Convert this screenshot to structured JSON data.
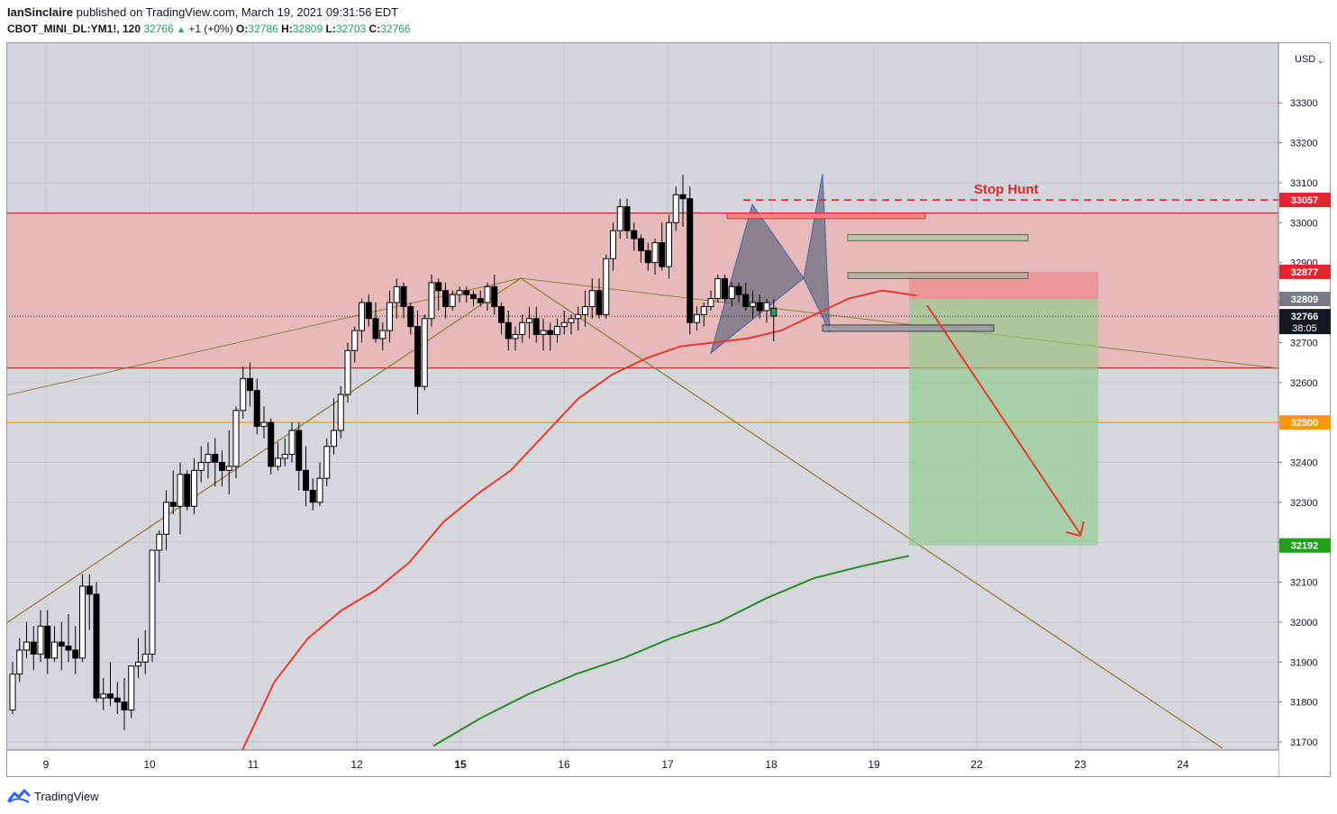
{
  "header": {
    "author": "IanSinclaire",
    "published_text": "published on TradingView.com, March 19, 2021 09:31:56 EDT",
    "symbol": "CBOT_MINI_DL:YM1!, 120",
    "last": "32766",
    "change_arrow": "▲",
    "change": "+1 (+0%)",
    "o_label": "O:",
    "o": "32786",
    "h_label": "H:",
    "h": "32809",
    "l_label": "L:",
    "l": "32703",
    "c_label": "C:",
    "c": "32766"
  },
  "footer": {
    "brand": "TradingView",
    "logo_icon": "tradingview-logo-icon"
  },
  "chart_data": {
    "type": "candlestick",
    "currency": "USD",
    "y_ticks": [
      31700,
      31800,
      31900,
      32000,
      32100,
      32200,
      32300,
      32400,
      32500,
      32600,
      32700,
      32800,
      32900,
      33000,
      33100,
      33200,
      33300
    ],
    "ylim": [
      31670,
      33420
    ],
    "x_ticks": [
      "9",
      "10",
      "11",
      "12",
      "15",
      "16",
      "17",
      "18",
      "19",
      "22",
      "23",
      "24"
    ],
    "x_ticks_bold": [
      "15"
    ],
    "price_labels": [
      {
        "text": "33057",
        "value": 33057,
        "color": "#e0252d"
      },
      {
        "text": "32877",
        "value": 32877,
        "color": "#e0252d"
      },
      {
        "text": "32809",
        "value": 32809,
        "color": "#787b86"
      },
      {
        "text": "32766",
        "value": 32766,
        "color": "#131722",
        "sub": "38:05"
      },
      {
        "text": "32500",
        "value": 32500,
        "color": "#ff9800"
      },
      {
        "text": "32192",
        "value": 32192,
        "color": "#1fa015"
      }
    ],
    "annotations": [
      {
        "text": "Stop Hunt",
        "color": "#e0252d"
      }
    ],
    "zones": [
      {
        "name": "supply-zone",
        "from": 32636,
        "to": 33024,
        "color": "#e9b5b5"
      }
    ],
    "levels": [
      {
        "name": "stop-hunt",
        "value": 33057,
        "color": "#e0252d",
        "style": "dashed"
      },
      {
        "name": "support",
        "value": 32500,
        "color": "#ff9800",
        "style": "solid"
      }
    ],
    "short_position": {
      "entry": 32809,
      "stop": 32877,
      "target": 32192
    },
    "ohlc": [
      [
        31780,
        31900,
        31770,
        31870
      ],
      [
        31870,
        31960,
        31850,
        31930
      ],
      [
        31930,
        32000,
        31910,
        31950
      ],
      [
        31950,
        31990,
        31880,
        31920
      ],
      [
        31920,
        32030,
        31900,
        31990
      ],
      [
        31990,
        32030,
        31870,
        31910
      ],
      [
        31910,
        31990,
        31900,
        31950
      ],
      [
        31950,
        32000,
        31880,
        31940
      ],
      [
        31940,
        32020,
        31900,
        31930
      ],
      [
        31930,
        31990,
        31870,
        31910
      ],
      [
        31910,
        32120,
        31900,
        32090
      ],
      [
        32090,
        32120,
        31980,
        32070
      ],
      [
        32070,
        32100,
        31800,
        31810
      ],
      [
        31810,
        31860,
        31780,
        31820
      ],
      [
        31820,
        31900,
        31790,
        31810
      ],
      [
        31810,
        31850,
        31770,
        31800
      ],
      [
        31800,
        31860,
        31730,
        31780
      ],
      [
        31780,
        31880,
        31760,
        31890
      ],
      [
        31890,
        31960,
        31860,
        31900
      ],
      [
        31900,
        31980,
        31870,
        31920
      ],
      [
        31920,
        32180,
        31900,
        32180
      ],
      [
        32180,
        32230,
        32100,
        32220
      ],
      [
        32220,
        32330,
        32180,
        32300
      ],
      [
        32300,
        32380,
        32270,
        32290
      ],
      [
        32290,
        32400,
        32220,
        32370
      ],
      [
        32370,
        32380,
        32280,
        32290
      ],
      [
        32290,
        32410,
        32270,
        32380
      ],
      [
        32380,
        32440,
        32350,
        32400
      ],
      [
        32400,
        32450,
        32360,
        32420
      ],
      [
        32420,
        32460,
        32340,
        32400
      ],
      [
        32400,
        32430,
        32340,
        32380
      ],
      [
        32380,
        32480,
        32320,
        32390
      ],
      [
        32390,
        32540,
        32360,
        32530
      ],
      [
        32530,
        32640,
        32510,
        32610
      ],
      [
        32610,
        32650,
        32540,
        32580
      ],
      [
        32580,
        32610,
        32470,
        32490
      ],
      [
        32490,
        32540,
        32460,
        32500
      ],
      [
        32500,
        32510,
        32370,
        32390
      ],
      [
        32390,
        32450,
        32380,
        32410
      ],
      [
        32410,
        32460,
        32390,
        32420
      ],
      [
        32420,
        32500,
        32400,
        32480
      ],
      [
        32480,
        32500,
        32330,
        32380
      ],
      [
        32380,
        32440,
        32290,
        32330
      ],
      [
        32330,
        32360,
        32280,
        32300
      ],
      [
        32300,
        32400,
        32290,
        32360
      ],
      [
        32360,
        32460,
        32340,
        32440
      ],
      [
        32440,
        32560,
        32420,
        32480
      ],
      [
        32480,
        32590,
        32460,
        32570
      ],
      [
        32570,
        32700,
        32550,
        32680
      ],
      [
        32680,
        32740,
        32650,
        32730
      ],
      [
        32730,
        32810,
        32700,
        32800
      ],
      [
        32800,
        32820,
        32740,
        32760
      ],
      [
        32760,
        32800,
        32700,
        32710
      ],
      [
        32710,
        32750,
        32680,
        32730
      ],
      [
        32730,
        32830,
        32700,
        32800
      ],
      [
        32800,
        32860,
        32760,
        32840
      ],
      [
        32840,
        32850,
        32760,
        32790
      ],
      [
        32790,
        32800,
        32720,
        32740
      ],
      [
        32740,
        32780,
        32520,
        32590
      ],
      [
        32590,
        32770,
        32580,
        32760
      ],
      [
        32760,
        32870,
        32740,
        32850
      ],
      [
        32850,
        32860,
        32780,
        32830
      ],
      [
        32830,
        32850,
        32760,
        32790
      ],
      [
        32790,
        32830,
        32780,
        32820
      ],
      [
        32820,
        32840,
        32800,
        32830
      ],
      [
        32830,
        32840,
        32800,
        32820
      ],
      [
        32820,
        32830,
        32790,
        32810
      ],
      [
        32810,
        32830,
        32790,
        32800
      ],
      [
        32800,
        32850,
        32780,
        32840
      ],
      [
        32840,
        32870,
        32770,
        32790
      ],
      [
        32790,
        32800,
        32720,
        32750
      ],
      [
        32750,
        32780,
        32680,
        32710
      ],
      [
        32710,
        32740,
        32680,
        32720
      ],
      [
        32720,
        32770,
        32700,
        32750
      ],
      [
        32750,
        32790,
        32710,
        32760
      ],
      [
        32760,
        32790,
        32700,
        32720
      ],
      [
        32720,
        32760,
        32680,
        32730
      ],
      [
        32730,
        32750,
        32680,
        32720
      ],
      [
        32720,
        32760,
        32700,
        32740
      ],
      [
        32740,
        32780,
        32720,
        32750
      ],
      [
        32750,
        32770,
        32720,
        32760
      ],
      [
        32760,
        32790,
        32730,
        32770
      ],
      [
        32770,
        32830,
        32740,
        32790
      ],
      [
        32790,
        32860,
        32760,
        32830
      ],
      [
        32830,
        32860,
        32760,
        32770
      ],
      [
        32770,
        32920,
        32760,
        32910
      ],
      [
        32910,
        33000,
        32880,
        32980
      ],
      [
        32980,
        33060,
        32960,
        33040
      ],
      [
        33040,
        33060,
        32960,
        32980
      ],
      [
        32980,
        33000,
        32930,
        32960
      ],
      [
        32960,
        32970,
        32900,
        32930
      ],
      [
        32930,
        32950,
        32880,
        32900
      ],
      [
        32900,
        32960,
        32870,
        32950
      ],
      [
        32950,
        33000,
        32880,
        32890
      ],
      [
        32890,
        33020,
        32860,
        33000
      ],
      [
        33000,
        33090,
        32980,
        33070
      ],
      [
        33070,
        33120,
        32990,
        33060
      ],
      [
        33060,
        33090,
        32720,
        32750
      ],
      [
        32750,
        32790,
        32730,
        32770
      ],
      [
        32770,
        32800,
        32740,
        32790
      ],
      [
        32790,
        32830,
        32780,
        32810
      ],
      [
        32810,
        32870,
        32800,
        32860
      ],
      [
        32860,
        32870,
        32800,
        32810
      ],
      [
        32810,
        32850,
        32790,
        32840
      ],
      [
        32840,
        32850,
        32800,
        32820
      ],
      [
        32820,
        32850,
        32780,
        32790
      ],
      [
        32790,
        32830,
        32760,
        32800
      ],
      [
        32800,
        32820,
        32760,
        32780
      ],
      [
        32780,
        32810,
        32750,
        32800
      ],
      [
        32786,
        32809,
        32703,
        32766
      ]
    ],
    "ema_red": [
      [
        31670,
        31850,
        31960,
        32030,
        32080,
        32150,
        32250,
        32320,
        32380,
        32470,
        32560,
        32620,
        32660,
        32690,
        32700,
        32710,
        32730,
        32770,
        32810,
        32830,
        32818
      ]
    ],
    "ma_green": [
      31690,
      31760,
      31820,
      31870,
      31910,
      31960,
      32000,
      32060,
      32110,
      32140,
      32166
    ]
  }
}
